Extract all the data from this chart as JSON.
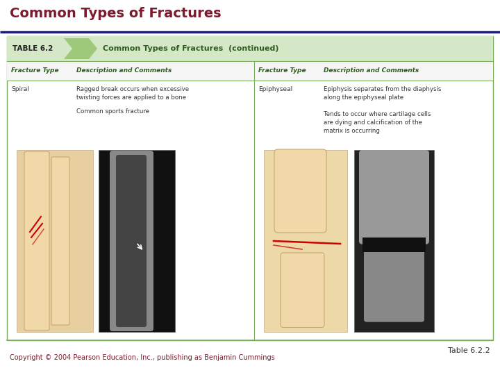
{
  "title": "Common Types of Fractures",
  "title_color": "#7B1C2E",
  "title_fontsize": 14,
  "title_bold": true,
  "divider_color": "#1C1C8A",
  "divider_linewidth": 2.5,
  "bg_color": "#FFFFFF",
  "table_header_text": "Common Types of Fractures  (continued)",
  "table_label": "TABLE 6.2",
  "table_header_color": "#2E5E1E",
  "table_header_bg": "#D4E8C8",
  "col_headers": [
    "Fracture Type",
    "Description and Comments",
    "Fracture Type",
    "Description and Comments"
  ],
  "col_header_color": "#2E5E1E",
  "row1_col1": "Spiral",
  "row1_col2a": "Ragged break occurs when excessive\ntwisting forces are applied to a bone",
  "row1_col2b": "Common sports fracture",
  "row1_col3": "Epiphyseal",
  "row1_col4a": "Epiphysis separates from the diaphysis\nalong the epiphyseal plate",
  "row1_col4b": "Tends to occur where cartilage cells\nare dying and calcification of the\nmatrix is occurring",
  "text_color": "#333333",
  "footer_left": "Copyright © 2004 Pearson Education, Inc., publishing as Benjamin Cummings",
  "footer_right": "Table 6.2.2",
  "footer_color": "#7B1C2E",
  "footer_fontsize": 7,
  "table_outline_color": "#7AAB5A",
  "bottom_line_color": "#7AAB5A"
}
